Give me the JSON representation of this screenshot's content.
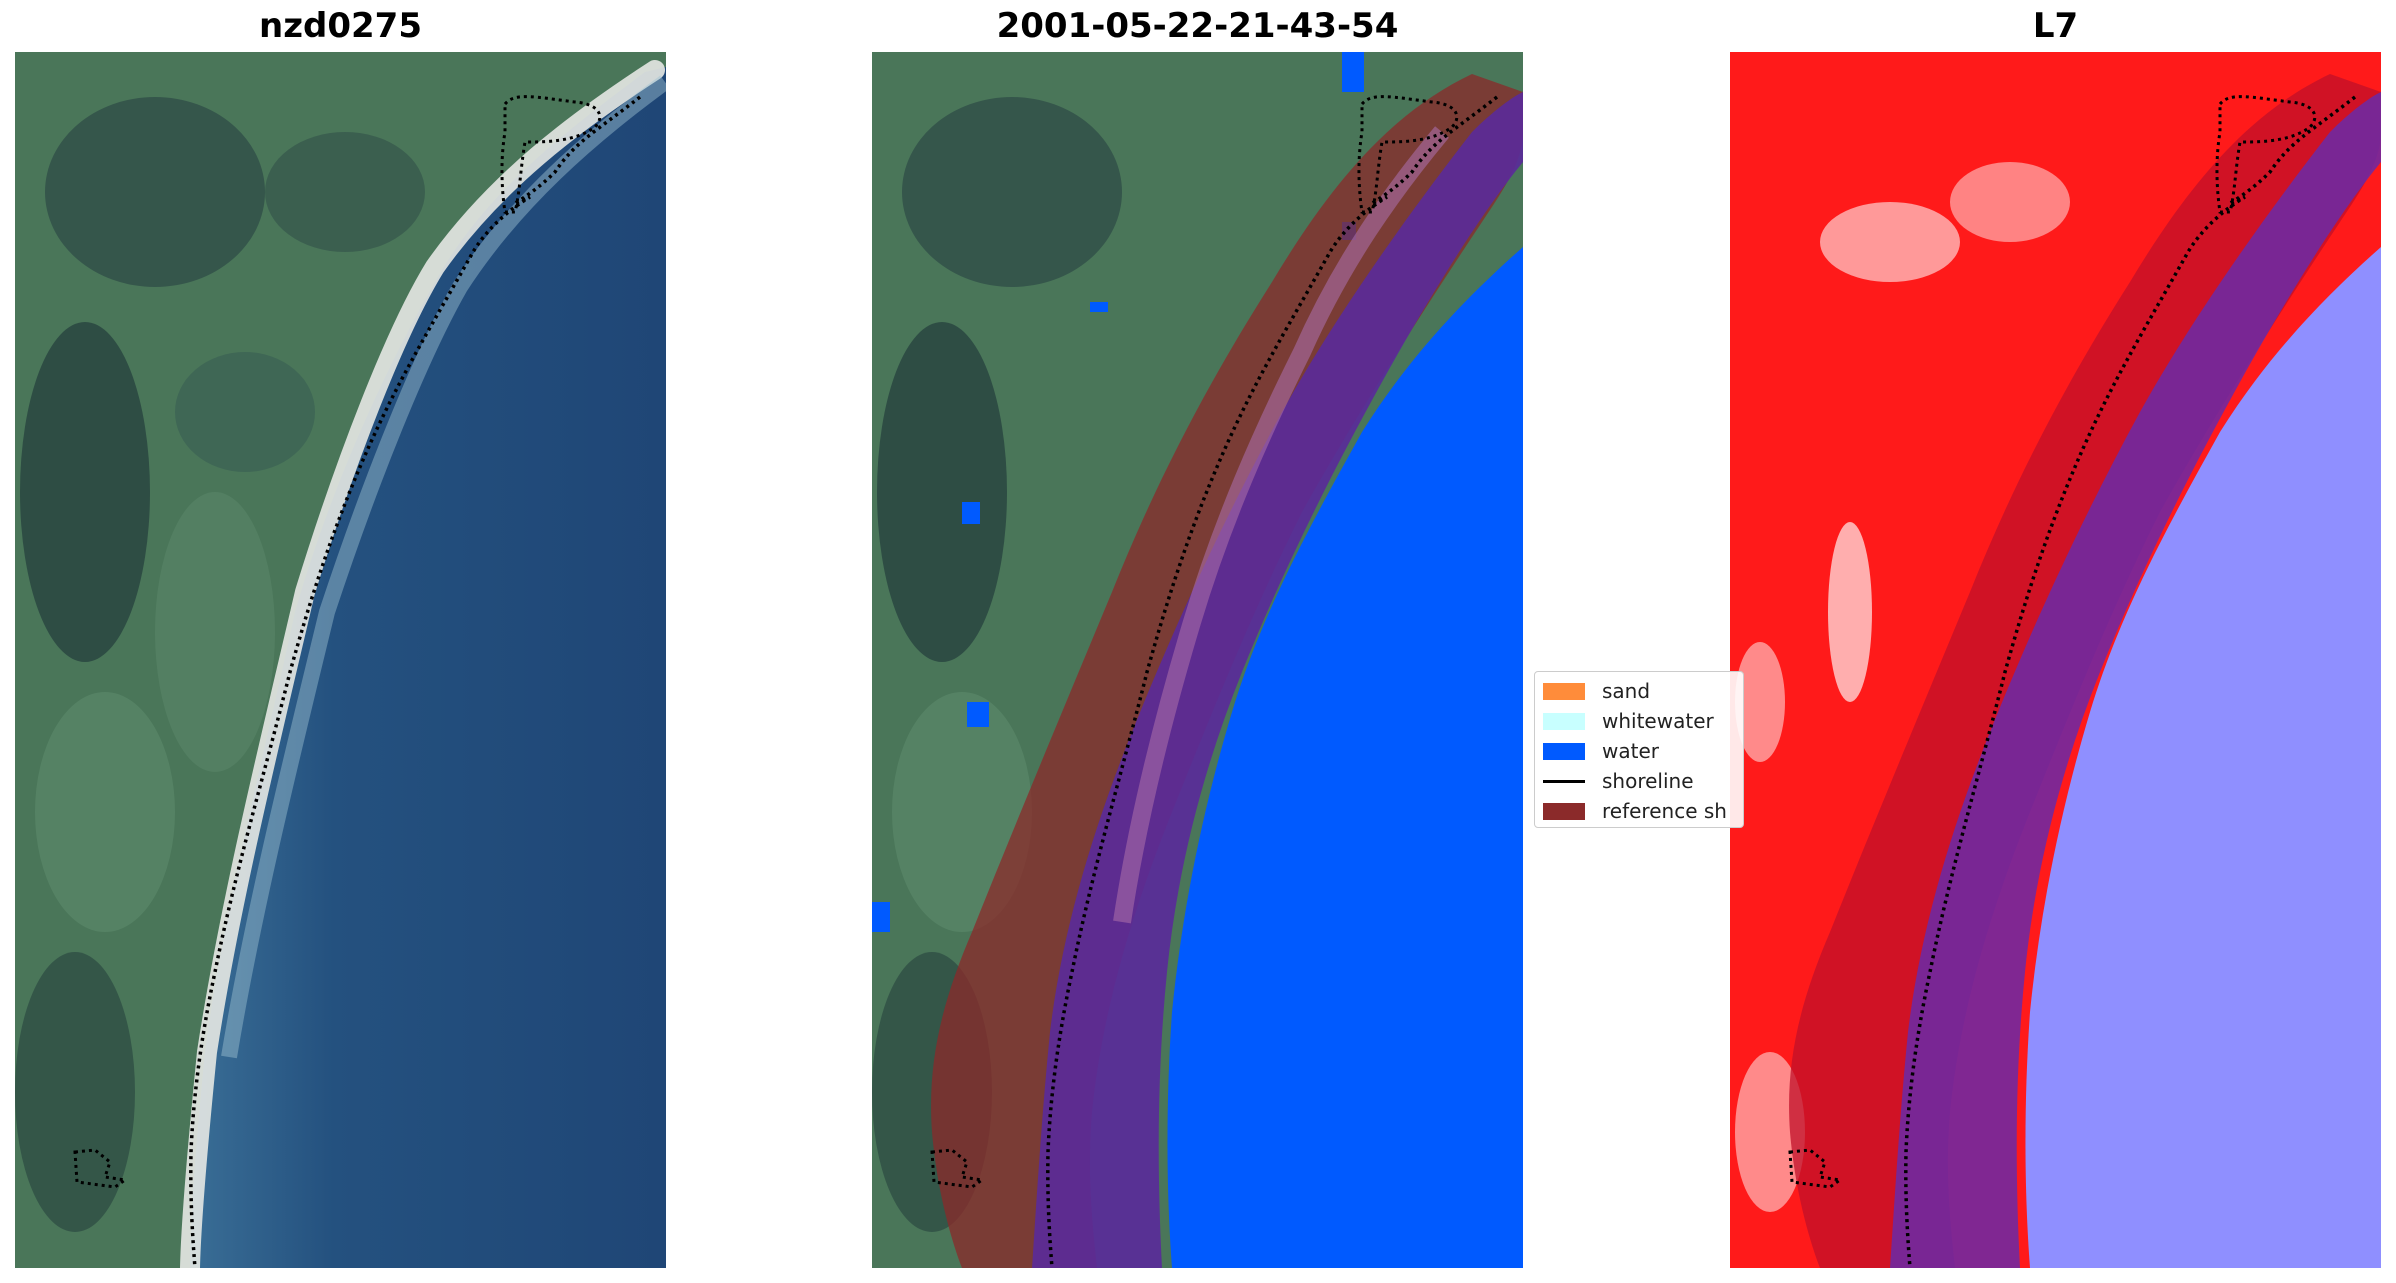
{
  "panels": [
    {
      "title": "nzd0275",
      "kind": "rgb-image"
    },
    {
      "title": "2001-05-22-21-43-54",
      "kind": "classification-overlay"
    },
    {
      "title": "L7",
      "kind": "index-map"
    }
  ],
  "legend": {
    "items": [
      {
        "label": "sand",
        "symbol": "patch",
        "color": "#ff8c3a"
      },
      {
        "label": "whitewater",
        "symbol": "patch",
        "color": "#c8ffff"
      },
      {
        "label": "water",
        "symbol": "patch",
        "color": "#005aff"
      },
      {
        "label": "shoreline",
        "symbol": "line",
        "color": "#000000"
      },
      {
        "label": "reference sh",
        "symbol": "patch",
        "color": "#8b2a2a"
      }
    ]
  },
  "colors": {
    "land_green": "#4c7a5d",
    "land_dark": "#2d4f46",
    "ocean_blue": "#24517f",
    "surf_white": "#e9ece8",
    "class_water": "#005aff",
    "reference_band": "#8b2a2a",
    "buffer_purple": "#5a2a9a",
    "index_red": "#ff1a1a",
    "index_blue": "#8f8fff"
  }
}
